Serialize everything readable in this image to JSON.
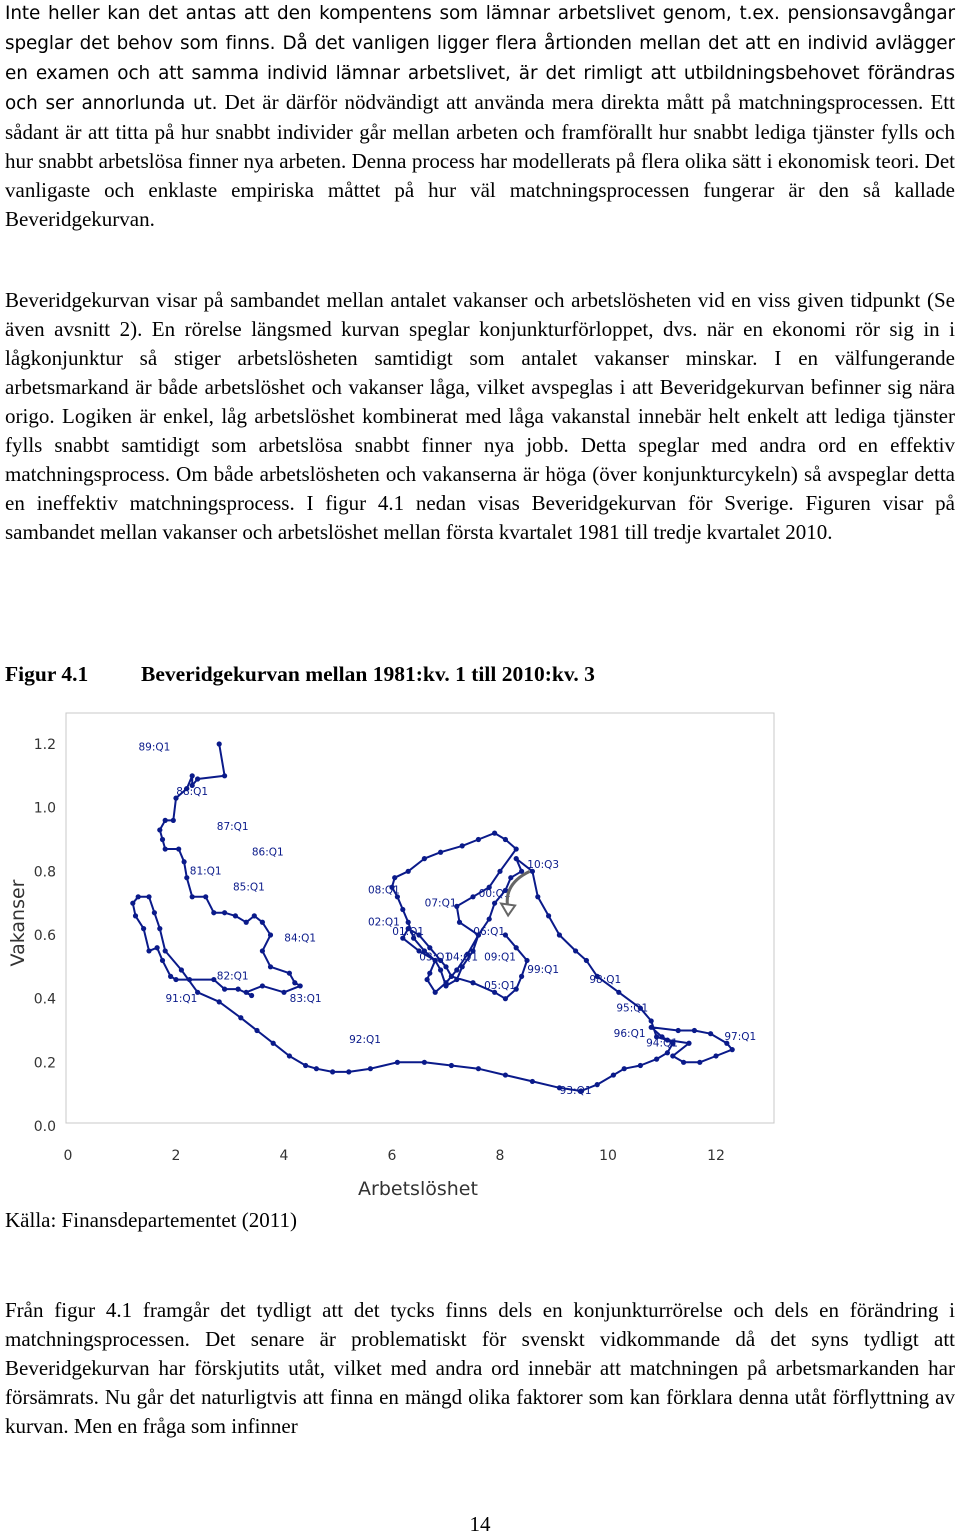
{
  "paragraphs": {
    "p1_sentence1": "Inte heller kan det antas att den kompentens som lämnar arbetslivet genom, t.ex. pensionsavgångar speglar det behov som finns.",
    "p1_sentence2": " Då det vanligen ligger flera årtionden mellan det att en individ avlägger en examen och att samma individ lämnar arbetslivet, är det rimligt att utbildningsbehovet förändras och ser annorlunda ut.",
    "p1_rest": " Det är därför nödvändigt att använda mera direkta mått på matchningsprocessen. Ett sådant är att titta på hur snabbt individer går mellan arbeten och framförallt hur snabbt lediga tjänster fylls och hur snabbt arbetslösa finner nya arbeten. Denna process har modellerats på flera olika sätt i ekonomisk teori. Det vanligaste och enklaste empiriska måttet på hur väl matchningsprocessen fungerar är den så kallade Beveridgekurvan.",
    "p2": "Beveridgekurvan visar på sambandet mellan antalet vakanser och arbetslösheten vid en viss given tidpunkt (Se även avsnitt 2). En rörelse längsmed kurvan speglar konjunkturförloppet, dvs. när en ekonomi rör sig in i lågkonjunktur så stiger arbetslösheten samtidigt som antalet vakanser minskar. I en välfungerande arbetsmarkand är både arbetslöshet och vakanser låga, vilket avspeglas i att Beveridgekurvan befinner sig nära origo. Logiken är enkel, låg arbetslöshet kombinerat med låga vakanstal innebär helt enkelt att lediga tjänster fylls snabbt samtidigt som arbetslösa snabbt finner nya jobb. Detta speglar med andra ord en effektiv matchningsprocess. Om både arbetslösheten och vakanserna är höga (över konjunkturcykeln) så avspeglar detta en ineffektiv matchningsprocess. I figur 4.1 nedan visas Beveridgekurvan för Sverige. Figuren visar på sambandet mellan vakanser och arbetslöshet mellan första kvartalet 1981 till tredje kvartalet 2010.",
    "p4": "Från figur 4.1 framgår det tydligt att det tycks finns dels en konjunkturrörelse och dels en förändring i matchningsprocessen. Det senare är problematiskt för svenskt vidkommande då det syns tydligt att Beveridgekurvan har förskjutits utåt, vilket med andra ord innebär att matchningen på arbetsmarkanden har försämrats. Nu går det naturligtvis att finna en mängd olika faktorer som kan förklara denna utåt förflyttning av kurvan. Men en fråga som infinner"
  },
  "figure": {
    "number": "Figur 4.1",
    "title": "Beveridgekurvan mellan 1981:kv. 1 till 2010:kv. 3",
    "source": "Källa: Finansdepartementet (2011)"
  },
  "page_number": "14",
  "chart_data": {
    "type": "line",
    "xlabel": "Arbetslöshet",
    "ylabel": "Vakanser",
    "xlim": [
      0,
      13
    ],
    "ylim": [
      0,
      1.25
    ],
    "x_ticks": [
      "0",
      "2",
      "4",
      "6",
      "8",
      "10",
      "12"
    ],
    "y_ticks": [
      "0.0",
      "0.2",
      "0.4",
      "0.6",
      "0.8",
      "1.0",
      "1.2"
    ],
    "grid": false,
    "legend": "none",
    "line_color": "#0a1a8a",
    "series": [
      {
        "x": [
          2.8,
          2.9,
          2.4,
          2.3,
          2.3,
          2.2,
          2.0,
          1.95,
          1.8,
          1.7,
          1.75,
          1.8,
          2.05,
          2.15,
          2.2,
          2.3,
          2.55,
          2.7,
          2.9,
          3.1,
          3.3,
          3.45,
          3.6,
          3.75,
          3.6,
          3.75,
          4.1,
          4.2,
          4.3,
          4.0,
          3.6,
          3.3,
          3.4,
          3.15,
          2.9,
          2.7,
          2.25,
          2.0,
          1.9,
          1.75,
          1.65,
          1.5,
          1.4,
          1.25,
          1.2,
          1.3,
          1.5,
          1.6,
          1.7,
          1.8,
          2.1,
          2.4,
          2.8,
          3.2,
          3.5,
          3.8,
          4.1,
          4.4,
          4.6,
          4.9,
          5.2,
          5.6,
          6.1,
          6.6,
          7.1,
          7.6,
          8.1,
          8.6,
          9.1,
          9.5,
          9.8,
          10.1,
          10.3,
          10.6,
          10.9,
          11.1,
          11.2,
          11.0,
          10.8,
          11.3,
          11.6,
          11.9,
          12.2,
          12.3,
          12.0,
          11.7,
          11.4,
          11.2,
          11.5,
          11.1,
          10.9,
          10.8,
          10.6,
          10.2,
          9.8,
          9.6,
          9.4,
          9.1,
          8.9,
          8.7,
          8.6,
          8.3,
          8.4,
          8.2,
          8.1,
          7.9,
          7.8,
          7.6,
          7.4,
          7.2,
          7.0,
          6.8,
          6.65,
          6.7,
          6.8,
          6.6,
          6.4,
          6.3,
          6.2,
          6.1,
          6.0,
          6.05,
          6.3,
          6.6,
          6.9,
          7.3,
          7.6,
          7.9,
          8.1,
          8.3,
          8.0,
          7.8,
          7.5,
          7.2,
          7.25,
          7.6,
          7.5,
          7.3,
          7.2,
          7.0,
          6.9,
          6.8,
          6.5,
          6.2,
          6.3,
          6.5,
          6.7,
          6.9,
          7.0,
          7.1,
          7.5,
          7.9,
          8.1,
          8.3,
          8.4,
          8.5,
          8.3,
          8.1
        ],
        "y": [
          1.2,
          1.1,
          1.09,
          1.07,
          1.1,
          1.06,
          1.03,
          0.96,
          0.96,
          0.93,
          0.9,
          0.87,
          0.87,
          0.83,
          0.78,
          0.72,
          0.72,
          0.67,
          0.67,
          0.66,
          0.64,
          0.66,
          0.64,
          0.6,
          0.55,
          0.5,
          0.48,
          0.45,
          0.44,
          0.42,
          0.44,
          0.42,
          0.41,
          0.43,
          0.43,
          0.46,
          0.46,
          0.46,
          0.47,
          0.52,
          0.56,
          0.55,
          0.62,
          0.66,
          0.7,
          0.72,
          0.72,
          0.67,
          0.62,
          0.55,
          0.49,
          0.42,
          0.39,
          0.34,
          0.3,
          0.26,
          0.22,
          0.19,
          0.18,
          0.17,
          0.17,
          0.18,
          0.2,
          0.2,
          0.19,
          0.18,
          0.16,
          0.14,
          0.12,
          0.11,
          0.13,
          0.16,
          0.18,
          0.19,
          0.21,
          0.23,
          0.26,
          0.28,
          0.31,
          0.3,
          0.3,
          0.29,
          0.26,
          0.24,
          0.22,
          0.2,
          0.2,
          0.22,
          0.26,
          0.27,
          0.28,
          0.33,
          0.37,
          0.42,
          0.47,
          0.52,
          0.55,
          0.6,
          0.66,
          0.72,
          0.8,
          0.84,
          0.8,
          0.78,
          0.74,
          0.7,
          0.65,
          0.6,
          0.54,
          0.49,
          0.45,
          0.42,
          0.46,
          0.48,
          0.52,
          0.55,
          0.59,
          0.64,
          0.68,
          0.72,
          0.75,
          0.78,
          0.8,
          0.84,
          0.86,
          0.88,
          0.9,
          0.92,
          0.9,
          0.87,
          0.8,
          0.75,
          0.72,
          0.69,
          0.64,
          0.6,
          0.55,
          0.5,
          0.46,
          0.44,
          0.49,
          0.52,
          0.55,
          0.59,
          0.62,
          0.6,
          0.56,
          0.52,
          0.5,
          0.47,
          0.45,
          0.42,
          0.4,
          0.43,
          0.47,
          0.52,
          0.56,
          0.6
        ]
      }
    ],
    "annotations": [
      {
        "text": "89:Q1",
        "x": 1.6,
        "y": 1.18
      },
      {
        "text": "88:Q1",
        "x": 2.3,
        "y": 1.04
      },
      {
        "text": "87:Q1",
        "x": 3.05,
        "y": 0.93
      },
      {
        "text": "86:Q1",
        "x": 3.7,
        "y": 0.85
      },
      {
        "text": "81:Q1",
        "x": 2.55,
        "y": 0.79
      },
      {
        "text": "85:Q1",
        "x": 3.35,
        "y": 0.74
      },
      {
        "text": "84:Q1",
        "x": 4.3,
        "y": 0.58
      },
      {
        "text": "82:Q1",
        "x": 3.05,
        "y": 0.46
      },
      {
        "text": "83:Q1",
        "x": 4.4,
        "y": 0.39
      },
      {
        "text": "91:Q1",
        "x": 2.1,
        "y": 0.39
      },
      {
        "text": "92:Q1",
        "x": 5.5,
        "y": 0.26
      },
      {
        "text": "93:Q1",
        "x": 9.4,
        "y": 0.1
      },
      {
        "text": "08:Q1",
        "x": 5.85,
        "y": 0.73
      },
      {
        "text": "07:Q1",
        "x": 6.9,
        "y": 0.69
      },
      {
        "text": "00:Q1",
        "x": 7.9,
        "y": 0.72
      },
      {
        "text": "10:Q3",
        "x": 8.8,
        "y": 0.81
      },
      {
        "text": "02:Q1",
        "x": 5.85,
        "y": 0.63
      },
      {
        "text": "01:Q1",
        "x": 6.3,
        "y": 0.6
      },
      {
        "text": "06:Q1",
        "x": 7.8,
        "y": 0.6
      },
      {
        "text": "03:Q1",
        "x": 6.8,
        "y": 0.52
      },
      {
        "text": "04:Q1",
        "x": 7.3,
        "y": 0.52
      },
      {
        "text": "09:Q1",
        "x": 8.0,
        "y": 0.52
      },
      {
        "text": "99:Q1",
        "x": 8.8,
        "y": 0.48
      },
      {
        "text": "05:Q1",
        "x": 8.0,
        "y": 0.43
      },
      {
        "text": "98:Q1",
        "x": 9.95,
        "y": 0.45
      },
      {
        "text": "95:Q1",
        "x": 10.45,
        "y": 0.36
      },
      {
        "text": "96:Q1",
        "x": 10.4,
        "y": 0.28
      },
      {
        "text": "94:Q1",
        "x": 11.0,
        "y": 0.25
      },
      {
        "text": "97:Q1",
        "x": 12.45,
        "y": 0.27
      }
    ]
  }
}
